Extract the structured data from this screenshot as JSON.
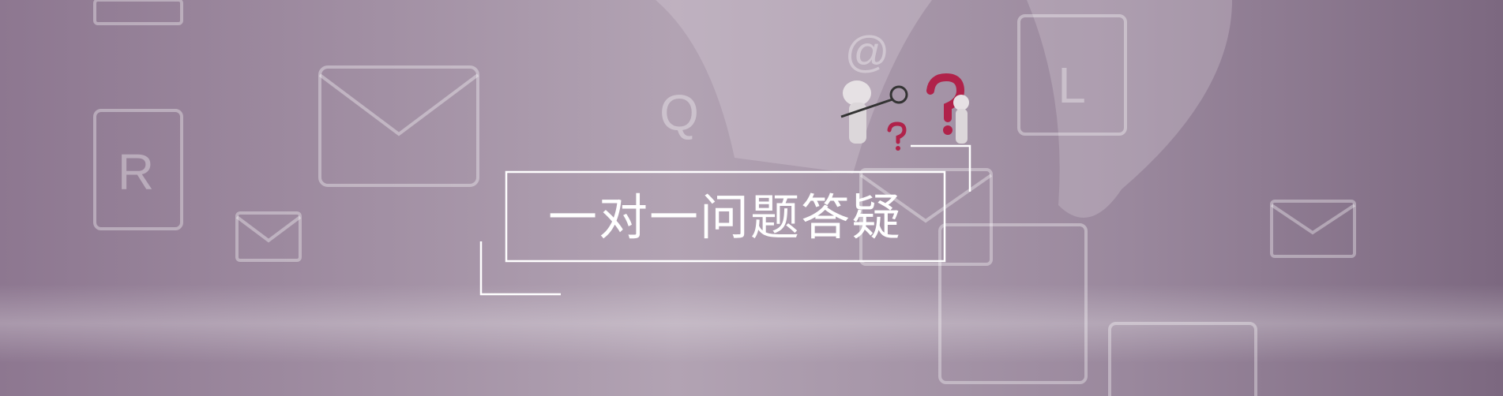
{
  "banner": {
    "title": "一对一问题答疑",
    "background_keys": [
      "R",
      "Q",
      "@",
      "L"
    ]
  }
}
